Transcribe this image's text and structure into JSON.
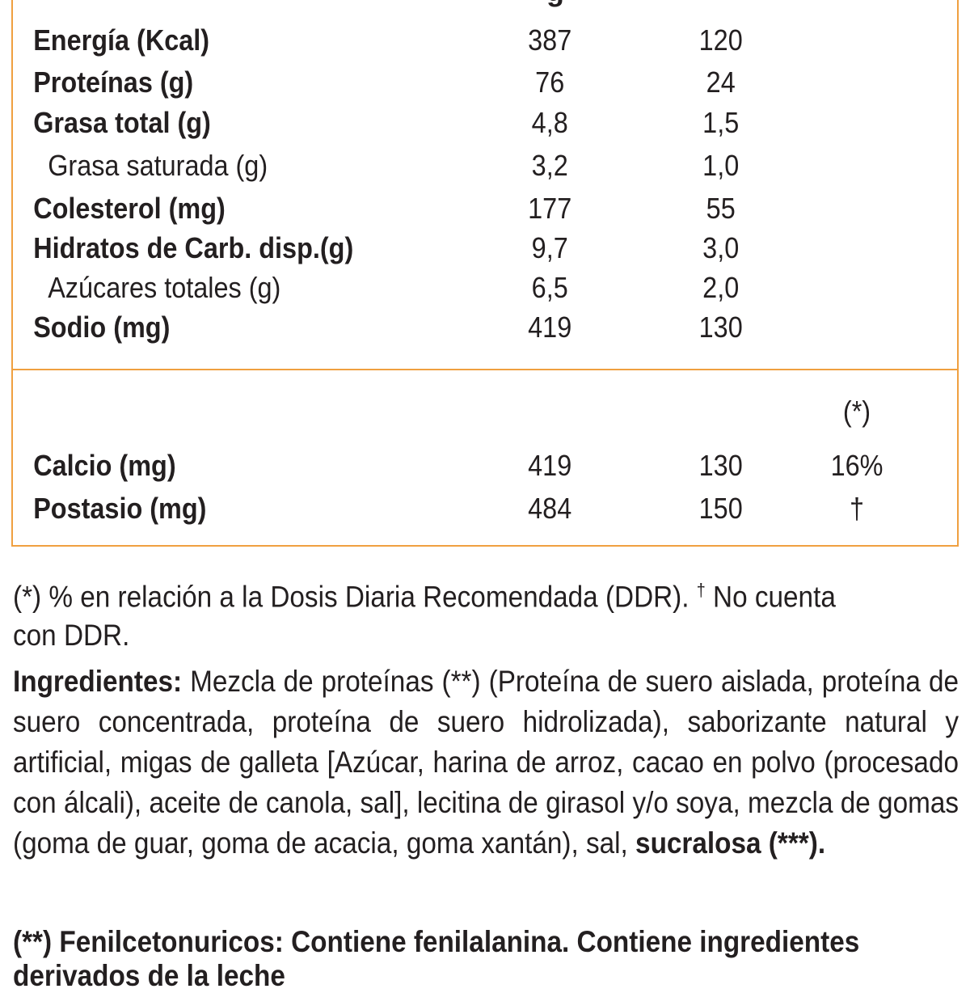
{
  "table": {
    "cut_header": "g",
    "macros": [
      {
        "label": "Energía (Kcal)",
        "per100": "387",
        "perPortion": "120",
        "bold": true
      },
      {
        "label": "Proteínas (g)",
        "per100": "76",
        "perPortion": "24",
        "bold": true
      },
      {
        "label": "Grasa total (g)",
        "per100": "4,8",
        "perPortion": "1,5",
        "bold": true
      },
      {
        "label": "Grasa saturada (g)",
        "per100": "3,2",
        "perPortion": "1,0",
        "bold": false
      },
      {
        "label": "Colesterol (mg)",
        "per100": "177",
        "perPortion": "55",
        "bold": true
      },
      {
        "label": "Hidratos de Carb. disp.(g)",
        "per100": "9,7",
        "perPortion": "3,0",
        "bold": true
      },
      {
        "label": "Azúcares totales (g)",
        "per100": "6,5",
        "perPortion": "2,0",
        "bold": false
      },
      {
        "label": "Sodio (mg)",
        "per100": "419",
        "perPortion": "130",
        "bold": true
      }
    ],
    "minerals_header": "(*)",
    "minerals": [
      {
        "label": "Calcio (mg)",
        "per100": "419",
        "perPortion": "130",
        "pct": "16%"
      },
      {
        "label": "Postasio (mg)",
        "per100": "484",
        "perPortion": "150",
        "pct": "†"
      }
    ]
  },
  "footnote": {
    "text1": "(*) % en relación a la Dosis Diaria Recomendada (DDR). ",
    "dagger": "†",
    "text2": " No cuenta con DDR."
  },
  "ingredients": {
    "title": "Ingredientes:",
    "text": " Mezcla de proteínas (**) (Proteína de suero aislada, proteína de suero concentrada, proteína de suero hidrolizada), saborizante natural y artificial, migas de galleta [Azúcar, harina de arroz, cacao en polvo (procesado con álcali), aceite de canola, sal], lecitina de girasol y/o soya, mezcla de gomas (goma de guar, goma de acacia, goma xantán), sal, ",
    "sweetener": "sucralosa (***)."
  },
  "warning": {
    "line": "(**) Fenilcetonuricos: Contiene fenilalanina. Contiene ingredientes",
    "cut_line": "derivados de la leche"
  },
  "colors": {
    "border": "#f0a040",
    "text": "#231f20"
  }
}
